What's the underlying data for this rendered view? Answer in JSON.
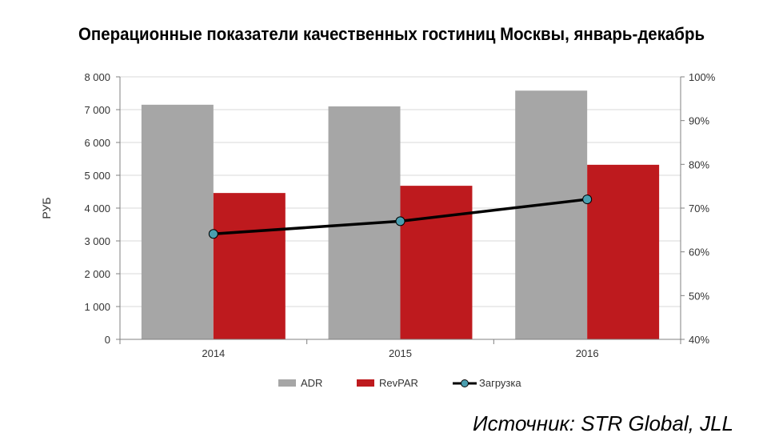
{
  "chart_data": {
    "type": "bar",
    "title": "Операционные показатели качественных гостиниц Москвы, январь-декабрь",
    "ylabel": "РУБ",
    "categories": [
      "2014",
      "2015",
      "2016"
    ],
    "series": [
      {
        "name": "ADR",
        "type": "bar",
        "axis": "left",
        "color": "#a6a6a6",
        "values": [
          7150,
          7100,
          7580
        ]
      },
      {
        "name": "RevPAR",
        "type": "bar",
        "axis": "left",
        "color": "#be1a1e",
        "values": [
          4460,
          4680,
          5320
        ]
      },
      {
        "name": "Загрузка",
        "type": "line",
        "axis": "right",
        "color": "#000000",
        "marker_color": "#4a9fb0",
        "values": [
          64.1,
          67.0,
          72.0
        ]
      }
    ],
    "ylim": [
      0,
      8000
    ],
    "yticks": [
      0,
      1000,
      2000,
      3000,
      4000,
      5000,
      6000,
      7000,
      8000
    ],
    "ytick_labels": [
      "0",
      "1 000",
      "2 000",
      "3 000",
      "4 000",
      "5 000",
      "6 000",
      "7 000",
      "8 000"
    ],
    "y2lim": [
      40,
      100
    ],
    "y2ticks": [
      40,
      50,
      60,
      70,
      80,
      90,
      100
    ],
    "y2tick_labels": [
      "40%",
      "50%",
      "60%",
      "70%",
      "80%",
      "90%",
      "100%"
    ],
    "grid": true,
    "legend_position": "bottom"
  },
  "source": "Источник: STR Global, JLL"
}
